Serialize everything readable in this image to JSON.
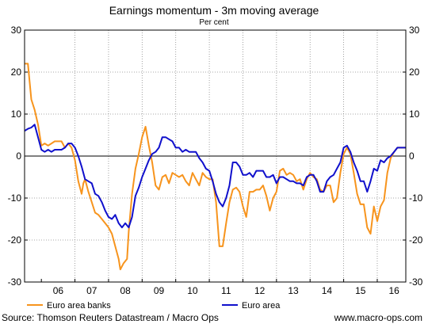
{
  "chart_data": {
    "type": "line",
    "title": "Earnings momentum - 3m moving average",
    "subtitle": "Per cent",
    "xlabel": "",
    "ylabel": "",
    "ylim": [
      -30,
      30
    ],
    "yticks": [
      30,
      20,
      10,
      0,
      -10,
      -20,
      -30
    ],
    "xlim": [
      2005.5,
      2016.85
    ],
    "x_tick_labels": [
      "06",
      "07",
      "08",
      "09",
      "10",
      "11",
      "12",
      "13",
      "14",
      "15",
      "16"
    ],
    "grid": true,
    "legend_position": "bottom",
    "series": [
      {
        "name": "Euro area banks",
        "color": "#f7941d",
        "points": [
          [
            2005.5,
            22.0
          ],
          [
            2005.6,
            22.0
          ],
          [
            2005.7,
            13.5
          ],
          [
            2005.8,
            11.0
          ],
          [
            2005.9,
            7.5
          ],
          [
            2006.0,
            2.5
          ],
          [
            2006.1,
            3.0
          ],
          [
            2006.2,
            2.5
          ],
          [
            2006.3,
            3.0
          ],
          [
            2006.4,
            3.5
          ],
          [
            2006.5,
            3.5
          ],
          [
            2006.6,
            3.5
          ],
          [
            2006.7,
            2.0
          ],
          [
            2006.8,
            3.0
          ],
          [
            2006.9,
            2.0
          ],
          [
            2007.0,
            -1.0
          ],
          [
            2007.1,
            -6.0
          ],
          [
            2007.2,
            -9.0
          ],
          [
            2007.25,
            -6.5
          ],
          [
            2007.3,
            -5.5
          ],
          [
            2007.4,
            -8.5
          ],
          [
            2007.5,
            -11.0
          ],
          [
            2007.6,
            -13.5
          ],
          [
            2007.7,
            -14.0
          ],
          [
            2007.8,
            -15.0
          ],
          [
            2007.9,
            -16.0
          ],
          [
            2008.0,
            -17.0
          ],
          [
            2008.1,
            -18.5
          ],
          [
            2008.2,
            -21.5
          ],
          [
            2008.3,
            -24.5
          ],
          [
            2008.35,
            -27.0
          ],
          [
            2008.45,
            -25.5
          ],
          [
            2008.55,
            -24.5
          ],
          [
            2008.6,
            -18.0
          ],
          [
            2008.7,
            -9.0
          ],
          [
            2008.8,
            -3.0
          ],
          [
            2008.9,
            0.5
          ],
          [
            2009.0,
            4.5
          ],
          [
            2009.1,
            7.0
          ],
          [
            2009.2,
            2.5
          ],
          [
            2009.3,
            -1.5
          ],
          [
            2009.4,
            -7.0
          ],
          [
            2009.5,
            -8.0
          ],
          [
            2009.6,
            -5.0
          ],
          [
            2009.7,
            -4.5
          ],
          [
            2009.8,
            -6.5
          ],
          [
            2009.9,
            -4.0
          ],
          [
            2010.0,
            -4.5
          ],
          [
            2010.1,
            -5.0
          ],
          [
            2010.2,
            -4.5
          ],
          [
            2010.3,
            -6.0
          ],
          [
            2010.4,
            -7.0
          ],
          [
            2010.5,
            -4.0
          ],
          [
            2010.6,
            -5.5
          ],
          [
            2010.7,
            -7.0
          ],
          [
            2010.8,
            -4.0
          ],
          [
            2010.9,
            -5.0
          ],
          [
            2011.0,
            -5.5
          ],
          [
            2011.1,
            -5.5
          ],
          [
            2011.2,
            -11.0
          ],
          [
            2011.3,
            -21.5
          ],
          [
            2011.4,
            -21.5
          ],
          [
            2011.5,
            -16.0
          ],
          [
            2011.6,
            -11.0
          ],
          [
            2011.7,
            -8.0
          ],
          [
            2011.8,
            -7.5
          ],
          [
            2011.9,
            -8.5
          ],
          [
            2012.0,
            -12.0
          ],
          [
            2012.1,
            -14.5
          ],
          [
            2012.2,
            -8.5
          ],
          [
            2012.3,
            -8.5
          ],
          [
            2012.4,
            -8.0
          ],
          [
            2012.5,
            -8.0
          ],
          [
            2012.6,
            -7.0
          ],
          [
            2012.7,
            -9.5
          ],
          [
            2012.8,
            -13.0
          ],
          [
            2012.9,
            -10.0
          ],
          [
            2013.0,
            -8.5
          ],
          [
            2013.1,
            -3.5
          ],
          [
            2013.2,
            -3.0
          ],
          [
            2013.3,
            -4.5
          ],
          [
            2013.4,
            -4.0
          ],
          [
            2013.5,
            -4.5
          ],
          [
            2013.6,
            -6.0
          ],
          [
            2013.7,
            -5.5
          ],
          [
            2013.8,
            -8.0
          ],
          [
            2013.9,
            -5.5
          ],
          [
            2014.0,
            -4.0
          ],
          [
            2014.1,
            -5.0
          ],
          [
            2014.2,
            -5.5
          ],
          [
            2014.3,
            -8.0
          ],
          [
            2014.4,
            -8.5
          ],
          [
            2014.5,
            -7.0
          ],
          [
            2014.6,
            -7.0
          ],
          [
            2014.7,
            -11.0
          ],
          [
            2014.8,
            -10.0
          ],
          [
            2014.9,
            -4.0
          ],
          [
            2015.0,
            0.5
          ],
          [
            2015.1,
            2.0
          ],
          [
            2015.2,
            0.5
          ],
          [
            2015.3,
            -4.0
          ],
          [
            2015.4,
            -9.0
          ],
          [
            2015.5,
            -11.5
          ],
          [
            2015.6,
            -11.5
          ],
          [
            2015.7,
            -17.0
          ],
          [
            2015.8,
            -18.5
          ],
          [
            2015.9,
            -12.0
          ],
          [
            2016.0,
            -15.5
          ],
          [
            2016.1,
            -12.0
          ],
          [
            2016.2,
            -10.5
          ],
          [
            2016.3,
            -4.0
          ],
          [
            2016.4,
            -0.5
          ],
          [
            2016.5,
            1.0
          ],
          [
            2016.6,
            2.0
          ],
          [
            2016.7,
            2.0
          ],
          [
            2016.85,
            2.0
          ]
        ]
      },
      {
        "name": "Euro area",
        "color": "#1010cc",
        "points": [
          [
            2005.5,
            6.0
          ],
          [
            2005.6,
            6.5
          ],
          [
            2005.7,
            6.8
          ],
          [
            2005.8,
            7.5
          ],
          [
            2005.9,
            4.5
          ],
          [
            2006.0,
            1.5
          ],
          [
            2006.1,
            1.0
          ],
          [
            2006.2,
            1.5
          ],
          [
            2006.3,
            1.0
          ],
          [
            2006.4,
            1.5
          ],
          [
            2006.5,
            1.5
          ],
          [
            2006.6,
            1.5
          ],
          [
            2006.7,
            2.0
          ],
          [
            2006.8,
            3.0
          ],
          [
            2006.9,
            3.0
          ],
          [
            2007.0,
            2.0
          ],
          [
            2007.1,
            0.0
          ],
          [
            2007.2,
            -2.5
          ],
          [
            2007.3,
            -5.5
          ],
          [
            2007.4,
            -6.0
          ],
          [
            2007.5,
            -6.5
          ],
          [
            2007.6,
            -9.0
          ],
          [
            2007.7,
            -9.5
          ],
          [
            2007.8,
            -11.0
          ],
          [
            2007.9,
            -13.0
          ],
          [
            2008.0,
            -14.5
          ],
          [
            2008.1,
            -15.0
          ],
          [
            2008.2,
            -14.0
          ],
          [
            2008.3,
            -16.0
          ],
          [
            2008.4,
            -17.0
          ],
          [
            2008.5,
            -16.0
          ],
          [
            2008.6,
            -17.0
          ],
          [
            2008.7,
            -14.5
          ],
          [
            2008.8,
            -9.5
          ],
          [
            2008.9,
            -7.5
          ],
          [
            2009.0,
            -5.0
          ],
          [
            2009.1,
            -3.0
          ],
          [
            2009.2,
            -1.0
          ],
          [
            2009.3,
            0.5
          ],
          [
            2009.4,
            1.0
          ],
          [
            2009.5,
            2.0
          ],
          [
            2009.6,
            4.5
          ],
          [
            2009.7,
            4.5
          ],
          [
            2009.8,
            4.0
          ],
          [
            2009.9,
            3.5
          ],
          [
            2010.0,
            2.0
          ],
          [
            2010.1,
            2.0
          ],
          [
            2010.2,
            1.0
          ],
          [
            2010.3,
            1.5
          ],
          [
            2010.4,
            1.0
          ],
          [
            2010.5,
            1.0
          ],
          [
            2010.6,
            1.0
          ],
          [
            2010.7,
            -0.5
          ],
          [
            2010.8,
            -1.5
          ],
          [
            2010.9,
            -3.0
          ],
          [
            2011.0,
            -3.5
          ],
          [
            2011.1,
            -6.0
          ],
          [
            2011.2,
            -9.0
          ],
          [
            2011.3,
            -11.0
          ],
          [
            2011.4,
            -12.0
          ],
          [
            2011.5,
            -10.0
          ],
          [
            2011.6,
            -7.0
          ],
          [
            2011.7,
            -1.5
          ],
          [
            2011.8,
            -1.5
          ],
          [
            2011.9,
            -2.5
          ],
          [
            2012.0,
            -4.5
          ],
          [
            2012.1,
            -4.5
          ],
          [
            2012.2,
            -4.0
          ],
          [
            2012.3,
            -5.0
          ],
          [
            2012.4,
            -3.5
          ],
          [
            2012.5,
            -3.5
          ],
          [
            2012.6,
            -3.5
          ],
          [
            2012.7,
            -5.0
          ],
          [
            2012.8,
            -5.0
          ],
          [
            2012.9,
            -4.5
          ],
          [
            2013.0,
            -6.5
          ],
          [
            2013.1,
            -5.0
          ],
          [
            2013.2,
            -5.0
          ],
          [
            2013.3,
            -5.5
          ],
          [
            2013.4,
            -6.0
          ],
          [
            2013.5,
            -6.0
          ],
          [
            2013.6,
            -6.5
          ],
          [
            2013.7,
            -6.5
          ],
          [
            2013.8,
            -7.0
          ],
          [
            2013.9,
            -5.0
          ],
          [
            2014.0,
            -4.5
          ],
          [
            2014.1,
            -4.5
          ],
          [
            2014.2,
            -6.0
          ],
          [
            2014.3,
            -8.5
          ],
          [
            2014.4,
            -8.5
          ],
          [
            2014.5,
            -6.0
          ],
          [
            2014.6,
            -5.0
          ],
          [
            2014.7,
            -4.5
          ],
          [
            2014.8,
            -3.0
          ],
          [
            2014.9,
            -1.5
          ],
          [
            2015.0,
            2.0
          ],
          [
            2015.1,
            2.5
          ],
          [
            2015.2,
            1.0
          ],
          [
            2015.3,
            -1.5
          ],
          [
            2015.4,
            -3.5
          ],
          [
            2015.5,
            -6.0
          ],
          [
            2015.6,
            -6.0
          ],
          [
            2015.7,
            -8.5
          ],
          [
            2015.8,
            -6.0
          ],
          [
            2015.9,
            -3.0
          ],
          [
            2016.0,
            -3.5
          ],
          [
            2016.1,
            -1.0
          ],
          [
            2016.2,
            -1.5
          ],
          [
            2016.3,
            -0.5
          ],
          [
            2016.4,
            0.0
          ],
          [
            2016.5,
            1.0
          ],
          [
            2016.6,
            2.0
          ],
          [
            2016.7,
            2.0
          ],
          [
            2016.85,
            2.0
          ]
        ]
      }
    ]
  },
  "footer": {
    "source": "Source: Thomson Reuters Datastream / Macro Ops",
    "website": "www.macro-ops.com"
  }
}
